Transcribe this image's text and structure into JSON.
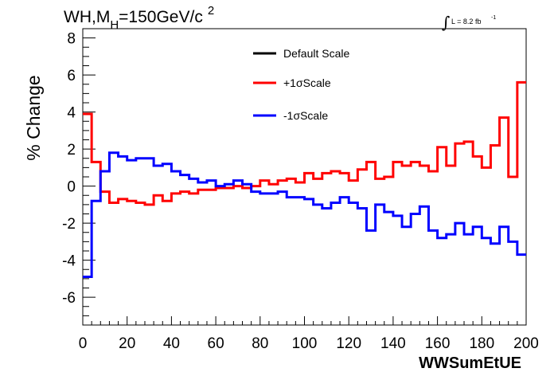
{
  "title": {
    "main": "WH,M",
    "subscript": "H",
    "rest": "=150GeV/c",
    "superscript": "2"
  },
  "lumi": {
    "integral_symbol": "∫",
    "text": "L = 8.2 fb",
    "sup": "-1"
  },
  "chart_data": {
    "type": "line",
    "xlabel": "WWSumEtUE",
    "ylabel": "% Change",
    "xlim": [
      0,
      200
    ],
    "ylim": [
      -7.5,
      8.5
    ],
    "xticks": [
      0,
      20,
      40,
      60,
      80,
      100,
      120,
      140,
      160,
      180,
      200
    ],
    "xtick_labels": [
      "0",
      "20",
      "40",
      "60",
      "80",
      "100",
      "120",
      "140",
      "160",
      "180",
      "200"
    ],
    "yticks": [
      -6,
      -4,
      -2,
      0,
      2,
      4,
      6,
      8
    ],
    "ytick_labels": [
      "-6",
      "-4",
      "-2",
      "0",
      "2",
      "4",
      "6",
      "8"
    ],
    "bin_edges": [
      0,
      4,
      8,
      12,
      16,
      20,
      24,
      28,
      32,
      36,
      40,
      44,
      48,
      52,
      56,
      60,
      64,
      68,
      72,
      76,
      80,
      84,
      88,
      92,
      96,
      100,
      104,
      108,
      112,
      116,
      120,
      124,
      128,
      132,
      136,
      140,
      144,
      148,
      152,
      156,
      160,
      164,
      168,
      172,
      176,
      180,
      184,
      188,
      192,
      196,
      200
    ],
    "grid": false,
    "legend_position": "top-center",
    "series": [
      {
        "name": "Default Scale",
        "color": "#000000",
        "values": []
      },
      {
        "name": "+1σScale",
        "color": "#ff0000",
        "values": [
          3.9,
          1.3,
          -0.3,
          -0.9,
          -0.7,
          -0.8,
          -0.9,
          -1.0,
          -0.5,
          -0.8,
          -0.4,
          -0.3,
          -0.4,
          -0.2,
          -0.2,
          -0.1,
          -0.1,
          0.0,
          -0.1,
          0.0,
          0.3,
          0.1,
          0.3,
          0.4,
          0.2,
          0.7,
          0.4,
          0.7,
          0.8,
          0.7,
          0.3,
          0.9,
          1.3,
          0.4,
          0.5,
          1.3,
          1.1,
          1.3,
          1.1,
          0.8,
          2.1,
          1.1,
          2.3,
          2.4,
          1.6,
          1.0,
          2.2,
          3.7,
          0.5,
          5.6
        ]
      },
      {
        "name": "-1σScale",
        "color": "#0000ff",
        "values": [
          -4.9,
          -0.8,
          0.8,
          1.8,
          1.6,
          1.4,
          1.5,
          1.5,
          1.1,
          1.2,
          0.8,
          0.6,
          0.4,
          0.2,
          0.3,
          0.0,
          0.1,
          0.3,
          0.1,
          -0.3,
          -0.4,
          -0.4,
          -0.3,
          -0.6,
          -0.6,
          -0.7,
          -1.0,
          -1.2,
          -0.9,
          -0.6,
          -0.9,
          -1.2,
          -2.4,
          -1.0,
          -1.4,
          -1.6,
          -2.2,
          -1.5,
          -1.1,
          -2.4,
          -2.8,
          -2.6,
          -2.0,
          -2.6,
          -2.2,
          -2.8,
          -3.1,
          -2.2,
          -3.0,
          -3.7
        ]
      }
    ]
  }
}
